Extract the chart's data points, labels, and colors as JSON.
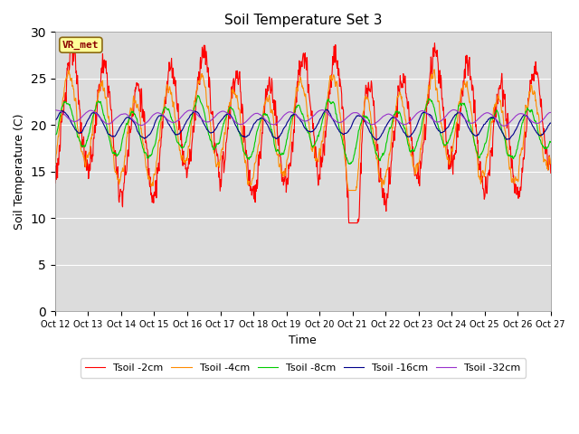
{
  "title": "Soil Temperature Set 3",
  "xlabel": "Time",
  "ylabel": "Soil Temperature (C)",
  "ylim": [
    0,
    30
  ],
  "yticks": [
    0,
    5,
    10,
    15,
    20,
    25,
    30
  ],
  "xtick_labels": [
    "Oct 12",
    "Oct 13",
    "Oct 14",
    "Oct 15",
    "Oct 16",
    "Oct 17",
    "Oct 18",
    "Oct 19",
    "Oct 20",
    "Oct 21",
    "Oct 22",
    "Oct 23",
    "Oct 24",
    "Oct 25",
    "Oct 26",
    "Oct 27"
  ],
  "colors": {
    "Tsoil -2cm": "#ff0000",
    "Tsoil -4cm": "#ff8c00",
    "Tsoil -8cm": "#00cc00",
    "Tsoil -16cm": "#00008b",
    "Tsoil -32cm": "#9932cc"
  },
  "legend_labels": [
    "Tsoil -2cm",
    "Tsoil -4cm",
    "Tsoil -8cm",
    "Tsoil -16cm",
    "Tsoil -32cm"
  ],
  "annotation_text": "VR_met",
  "bg_color": "#dcdcdc",
  "fig_bg_color": "#ffffff",
  "n_points": 1440
}
